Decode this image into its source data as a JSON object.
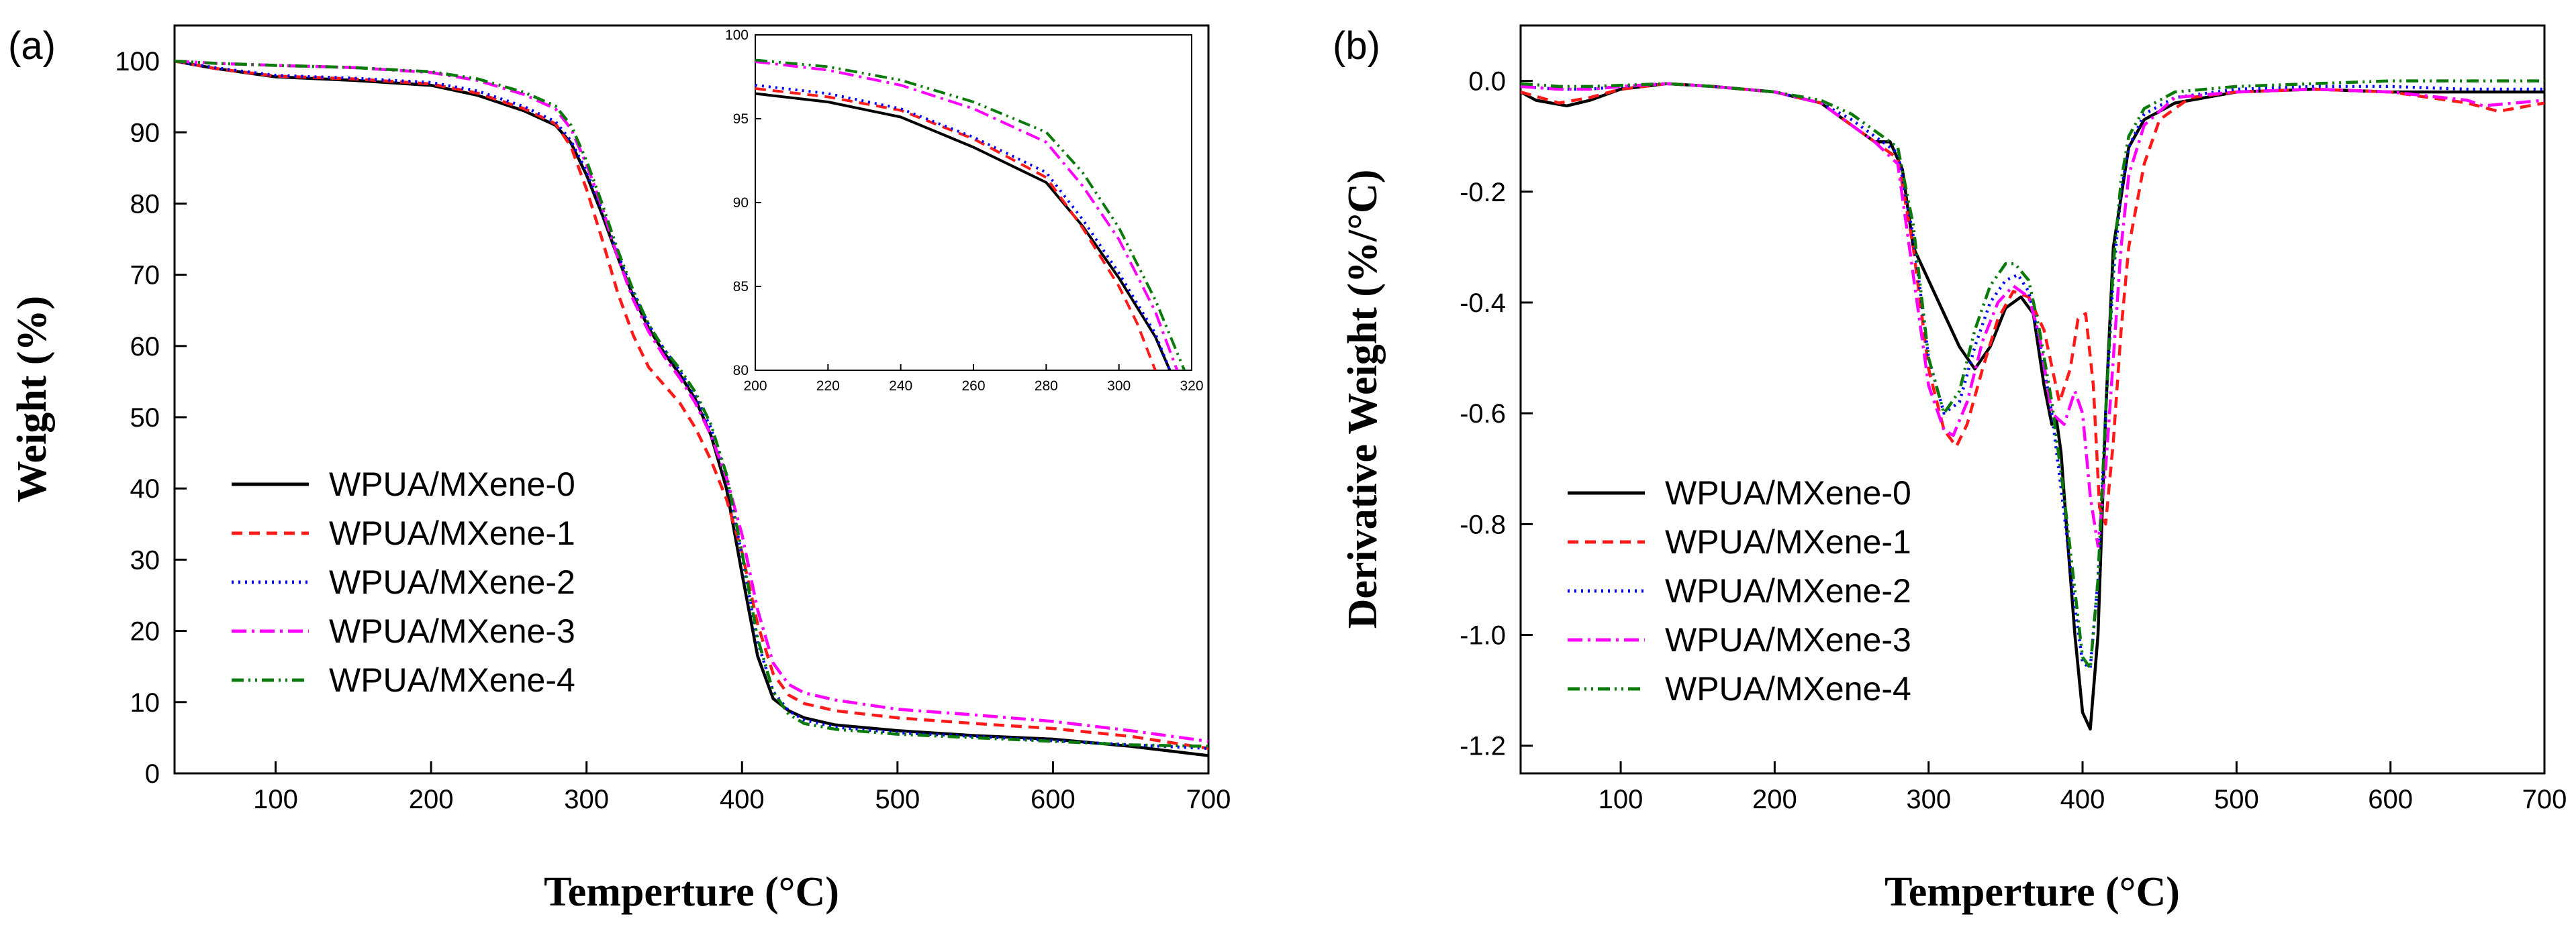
{
  "chart_data": [
    {
      "type": "line",
      "panel_label": "(a)",
      "xlabel": "Temperture (°C)",
      "ylabel": "Weight (%)",
      "xlim": [
        35,
        700
      ],
      "ylim": [
        0,
        105
      ],
      "xticks": [
        100,
        200,
        300,
        400,
        500,
        600,
        700
      ],
      "yticks": [
        0,
        10,
        20,
        30,
        40,
        50,
        60,
        70,
        80,
        90,
        100
      ],
      "legend_position": "lower-left",
      "series": [
        {
          "name": "WPUA/MXene-0",
          "color": "#000000",
          "style": "solid",
          "x": [
            35,
            60,
            100,
            150,
            200,
            230,
            260,
            280,
            290,
            300,
            310,
            320,
            330,
            340,
            350,
            360,
            370,
            380,
            390,
            400,
            410,
            420,
            430,
            440,
            460,
            500,
            550,
            600,
            650,
            700
          ],
          "y": [
            100,
            99,
            97.8,
            97.3,
            96.6,
            95.2,
            93,
            91,
            88.5,
            84,
            78.5,
            72.5,
            67,
            62.5,
            59,
            56,
            52.5,
            47.5,
            40,
            28,
            16.5,
            10.5,
            8.8,
            7.8,
            6.8,
            6,
            5.3,
            4.8,
            3.8,
            2.5
          ]
        },
        {
          "name": "WPUA/MXene-1",
          "color": "#ff1a1a",
          "style": "dashed",
          "x": [
            35,
            60,
            100,
            150,
            200,
            230,
            260,
            280,
            290,
            300,
            310,
            320,
            330,
            340,
            350,
            360,
            370,
            380,
            390,
            400,
            410,
            420,
            430,
            440,
            460,
            500,
            550,
            600,
            650,
            700
          ],
          "y": [
            100,
            99,
            97.9,
            97.5,
            96.8,
            95.5,
            93.3,
            91.2,
            88,
            82,
            75,
            67.5,
            61.5,
            57,
            54.5,
            52,
            48.5,
            44,
            38.5,
            31,
            21,
            14,
            11,
            9.8,
            8.8,
            7.8,
            7,
            6.3,
            5.2,
            3.5
          ]
        },
        {
          "name": "WPUA/MXene-2",
          "color": "#0000ff",
          "style": "dotted",
          "x": [
            35,
            60,
            100,
            150,
            200,
            230,
            260,
            280,
            290,
            300,
            310,
            320,
            330,
            340,
            350,
            360,
            370,
            380,
            390,
            400,
            410,
            420,
            430,
            440,
            460,
            500,
            550,
            600,
            650,
            700
          ],
          "y": [
            100,
            99.1,
            98,
            97.6,
            97,
            95.8,
            93.6,
            91.5,
            88.8,
            84.5,
            79,
            73,
            67.5,
            63,
            59.5,
            56.5,
            53,
            48.5,
            41.5,
            30.5,
            18.5,
            11.5,
            8.8,
            7.5,
            6.5,
            5.7,
            5.2,
            4.6,
            4,
            3.5
          ]
        },
        {
          "name": "WPUA/MXene-3",
          "color": "#ff00ff",
          "style": "dashdot",
          "x": [
            35,
            60,
            100,
            150,
            200,
            230,
            260,
            280,
            290,
            300,
            310,
            320,
            330,
            340,
            350,
            360,
            370,
            380,
            390,
            400,
            410,
            420,
            430,
            440,
            460,
            500,
            550,
            600,
            650,
            700
          ],
          "y": [
            100,
            99.7,
            99.4,
            99.1,
            98.4,
            97.3,
            95.3,
            93.3,
            90.5,
            85.5,
            79.5,
            72.5,
            66.5,
            62,
            58.5,
            55.5,
            52,
            47.5,
            41.5,
            33.5,
            23,
            15.5,
            12.5,
            11.3,
            10.3,
            9,
            8.2,
            7.3,
            6,
            4.5
          ]
        },
        {
          "name": "WPUA/MXene-4",
          "color": "#0a7a0a",
          "style": "dashdotdot",
          "x": [
            35,
            60,
            100,
            150,
            200,
            230,
            260,
            280,
            290,
            300,
            310,
            320,
            330,
            340,
            350,
            360,
            370,
            380,
            390,
            400,
            410,
            420,
            430,
            440,
            460,
            500,
            550,
            600,
            650,
            700
          ],
          "y": [
            100,
            99.7,
            99.4,
            99.1,
            98.5,
            97.5,
            95.6,
            93.7,
            91,
            86,
            80,
            73.5,
            67.8,
            63,
            59.5,
            56.8,
            53.5,
            49,
            42,
            31,
            19,
            11.5,
            8.3,
            7,
            6.2,
            5.5,
            5,
            4.5,
            4,
            3.8
          ]
        }
      ],
      "inset": {
        "xlim": [
          200,
          320
        ],
        "ylim": [
          80,
          100
        ],
        "xticks": [
          200,
          220,
          240,
          260,
          280,
          300,
          320
        ],
        "yticks": [
          80,
          85,
          90,
          95,
          100
        ],
        "series": [
          {
            "name": "WPUA/MXene-0",
            "x": [
              200,
              220,
              240,
              260,
              280,
              290,
              300,
              310,
              314
            ],
            "y": [
              96.5,
              96,
              95.1,
              93.3,
              91.2,
              88.6,
              85.5,
              82,
              80
            ]
          },
          {
            "name": "WPUA/MXene-1",
            "x": [
              200,
              220,
              240,
              260,
              280,
              290,
              300,
              305,
              310
            ],
            "y": [
              96.8,
              96.3,
              95.5,
              93.8,
              91.5,
              88.5,
              85,
              82.8,
              80
            ]
          },
          {
            "name": "WPUA/MXene-2",
            "x": [
              200,
              220,
              240,
              260,
              280,
              290,
              300,
              310,
              314
            ],
            "y": [
              97,
              96.5,
              95.6,
              93.9,
              91.8,
              89,
              85.8,
              82.2,
              80
            ]
          },
          {
            "name": "WPUA/MXene-3",
            "x": [
              200,
              220,
              240,
              260,
              280,
              290,
              300,
              310,
              316
            ],
            "y": [
              98.4,
              97.9,
              97,
              95.6,
              93.6,
              91,
              87.8,
              83.5,
              80
            ]
          },
          {
            "name": "WPUA/MXene-4",
            "x": [
              200,
              220,
              240,
              260,
              280,
              290,
              300,
              310,
              318
            ],
            "y": [
              98.5,
              98.1,
              97.3,
              96,
              94.2,
              91.8,
              88.5,
              84.2,
              80
            ]
          }
        ]
      }
    },
    {
      "type": "line",
      "panel_label": "(b)",
      "xlabel": "Temperture (°C)",
      "ylabel": "Derivative Weight (%/°C)",
      "xlim": [
        35,
        700
      ],
      "ylim": [
        -1.25,
        0.1
      ],
      "xticks": [
        100,
        200,
        300,
        400,
        500,
        600,
        700
      ],
      "yticks": [
        0.0,
        -0.2,
        -0.4,
        -0.6,
        -0.8,
        -1.0,
        -1.2
      ],
      "ytick_labels": [
        "0.0",
        "-0.2",
        "-0.4",
        "-0.6",
        "-0.8",
        "-1.0",
        "-1.2"
      ],
      "legend_position": "lower-left",
      "series": [
        {
          "name": "WPUA/MXene-0",
          "color": "#000000",
          "style": "solid",
          "x": [
            35,
            45,
            65,
            80,
            100,
            130,
            160,
            200,
            230,
            250,
            265,
            275,
            283,
            290,
            300,
            310,
            320,
            330,
            340,
            350,
            360,
            368,
            375,
            380,
            383,
            386,
            390,
            395,
            400,
            405,
            410,
            415,
            420,
            430,
            440,
            460,
            500,
            550,
            600,
            650,
            700
          ],
          "y": [
            -0.02,
            -0.035,
            -0.045,
            -0.035,
            -0.015,
            -0.005,
            -0.01,
            -0.02,
            -0.04,
            -0.08,
            -0.11,
            -0.11,
            -0.16,
            -0.3,
            -0.36,
            -0.42,
            -0.48,
            -0.52,
            -0.48,
            -0.41,
            -0.39,
            -0.42,
            -0.55,
            -0.62,
            -0.61,
            -0.67,
            -0.82,
            -1.0,
            -1.14,
            -1.17,
            -1.0,
            -0.6,
            -0.3,
            -0.12,
            -0.07,
            -0.04,
            -0.02,
            -0.015,
            -0.02,
            -0.02,
            -0.02
          ]
        },
        {
          "name": "WPUA/MXene-1",
          "color": "#ff1a1a",
          "style": "dashed",
          "x": [
            35,
            60,
            80,
            100,
            130,
            160,
            200,
            230,
            250,
            265,
            280,
            290,
            300,
            310,
            318,
            325,
            335,
            345,
            355,
            365,
            375,
            385,
            392,
            397,
            402,
            407,
            411,
            415,
            420,
            425,
            430,
            440,
            450,
            470,
            500,
            550,
            600,
            650,
            670,
            700
          ],
          "y": [
            -0.02,
            -0.04,
            -0.03,
            -0.015,
            -0.005,
            -0.01,
            -0.02,
            -0.04,
            -0.08,
            -0.11,
            -0.14,
            -0.3,
            -0.52,
            -0.63,
            -0.66,
            -0.62,
            -0.52,
            -0.43,
            -0.38,
            -0.39,
            -0.45,
            -0.58,
            -0.52,
            -0.43,
            -0.42,
            -0.55,
            -0.77,
            -0.8,
            -0.65,
            -0.45,
            -0.3,
            -0.15,
            -0.07,
            -0.03,
            -0.02,
            -0.015,
            -0.02,
            -0.04,
            -0.055,
            -0.04
          ]
        },
        {
          "name": "WPUA/MXene-2",
          "color": "#0000ff",
          "style": "dotted",
          "x": [
            35,
            60,
            80,
            100,
            130,
            160,
            200,
            230,
            250,
            265,
            280,
            290,
            300,
            310,
            320,
            330,
            340,
            350,
            358,
            365,
            372,
            380,
            388,
            395,
            400,
            405,
            410,
            415,
            420,
            425,
            430,
            440,
            460,
            500,
            550,
            600,
            650,
            700
          ],
          "y": [
            -0.01,
            -0.015,
            -0.015,
            -0.01,
            -0.005,
            -0.01,
            -0.02,
            -0.04,
            -0.07,
            -0.1,
            -0.13,
            -0.28,
            -0.5,
            -0.6,
            -0.58,
            -0.48,
            -0.4,
            -0.36,
            -0.35,
            -0.38,
            -0.47,
            -0.6,
            -0.78,
            -0.95,
            -1.05,
            -1.06,
            -0.9,
            -0.6,
            -0.35,
            -0.2,
            -0.12,
            -0.06,
            -0.03,
            -0.015,
            -0.01,
            -0.01,
            -0.015,
            -0.015
          ]
        },
        {
          "name": "WPUA/MXene-3",
          "color": "#ff00ff",
          "style": "dashdot",
          "x": [
            35,
            60,
            80,
            100,
            130,
            160,
            200,
            230,
            250,
            265,
            280,
            290,
            300,
            310,
            316,
            325,
            335,
            345,
            355,
            365,
            372,
            380,
            388,
            395,
            400,
            405,
            410,
            415,
            420,
            425,
            430,
            440,
            460,
            500,
            550,
            600,
            650,
            660,
            700
          ],
          "y": [
            -0.01,
            -0.015,
            -0.015,
            -0.01,
            -0.005,
            -0.01,
            -0.02,
            -0.04,
            -0.08,
            -0.11,
            -0.15,
            -0.35,
            -0.55,
            -0.63,
            -0.64,
            -0.58,
            -0.47,
            -0.4,
            -0.37,
            -0.39,
            -0.46,
            -0.6,
            -0.62,
            -0.56,
            -0.6,
            -0.75,
            -0.84,
            -0.7,
            -0.5,
            -0.3,
            -0.17,
            -0.08,
            -0.03,
            -0.02,
            -0.015,
            -0.02,
            -0.035,
            -0.045,
            -0.035
          ]
        },
        {
          "name": "WPUA/MXene-4",
          "color": "#0a7a0a",
          "style": "dashdotdot",
          "x": [
            35,
            60,
            80,
            100,
            130,
            160,
            200,
            230,
            250,
            265,
            280,
            290,
            300,
            310,
            320,
            330,
            340,
            350,
            356,
            365,
            372,
            380,
            388,
            395,
            400,
            405,
            410,
            415,
            420,
            425,
            430,
            440,
            460,
            500,
            550,
            600,
            650,
            700
          ],
          "y": [
            -0.005,
            -0.01,
            -0.01,
            -0.008,
            -0.005,
            -0.01,
            -0.02,
            -0.035,
            -0.06,
            -0.09,
            -0.12,
            -0.26,
            -0.5,
            -0.6,
            -0.56,
            -0.45,
            -0.37,
            -0.33,
            -0.33,
            -0.36,
            -0.45,
            -0.58,
            -0.75,
            -0.92,
            -1.04,
            -1.06,
            -0.9,
            -0.6,
            -0.33,
            -0.18,
            -0.1,
            -0.05,
            -0.02,
            -0.01,
            -0.005,
            0.0,
            0.0,
            0.0
          ]
        }
      ]
    }
  ]
}
